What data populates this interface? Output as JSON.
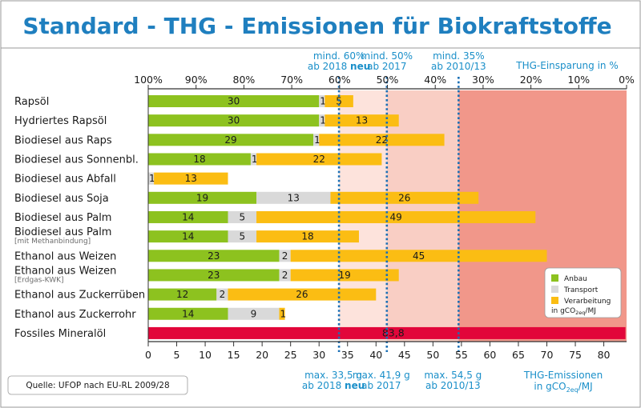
{
  "title": "Standard - THG - Emissionen für Biokraftstoffe",
  "source": "Quelle: UFOP nach EU-RL 2009/28",
  "colors": {
    "title": "#1f7fbf",
    "anbau": "#8dc21f",
    "transport": "#d9d9d9",
    "verarbeitung": "#fbbd13",
    "fossil": "#e2063a",
    "zone_light": "#fde3dc",
    "zone_mid": "#f9cec4",
    "zone_dark": "#f1978a",
    "threshold_line": "#1a6fb5",
    "frame": "#333333"
  },
  "header": {
    "thresholds": [
      {
        "line1": "mind. 60%",
        "line2_pre": "ab 2018 ",
        "line2_bold": "neu"
      },
      {
        "line1": "mind. 50%",
        "line2_pre": "ab 2017",
        "line2_bold": ""
      },
      {
        "line1": "mind. 35%",
        "line2_pre": "ab 2010/13",
        "line2_bold": ""
      }
    ],
    "savings_label": "THG-Einsparung in %",
    "savings_ticks": [
      "100%",
      "90%",
      "80%",
      "70%",
      "60%",
      "50%",
      "40%",
      "30%",
      "20%",
      "10%",
      "0%"
    ]
  },
  "footer": {
    "thresholds": [
      {
        "line1": "max. 33,5 g",
        "line2_pre": "ab 2018 ",
        "line2_bold": "neu"
      },
      {
        "line1": "max. 41,9 g",
        "line2_pre": "ab 2017",
        "line2_bold": ""
      },
      {
        "line1": "max. 54,5 g",
        "line2_pre": "ab 2010/13",
        "line2_bold": ""
      }
    ],
    "emissions_label_1": "THG-Emissionen",
    "emissions_label_2_pre": "in gCO",
    "emissions_label_2_sub": "2eq",
    "emissions_label_2_post": "/MJ"
  },
  "legend": {
    "items": [
      "Anbau",
      "Transport",
      "Verarbeitung"
    ],
    "unit_pre": "in gCO",
    "unit_sub": "2eq",
    "unit_post": "/MJ"
  },
  "chart_data": {
    "type": "bar",
    "orientation": "horizontal",
    "stacked": true,
    "title": "Standard - THG - Emissionen für Biokraftstoffe",
    "xlabel": "THG-Emissionen in gCO2eq/MJ",
    "xlim": [
      0,
      84
    ],
    "xticks": [
      0,
      5,
      10,
      15,
      20,
      25,
      30,
      35,
      40,
      45,
      50,
      55,
      60,
      65,
      70,
      75,
      80
    ],
    "thresholds": [
      33.5,
      41.9,
      54.5
    ],
    "fossil_reference": 83.8,
    "categories": [
      {
        "name": "Rapsöl",
        "note": ""
      },
      {
        "name": "Hydriertes Rapsöl",
        "note": ""
      },
      {
        "name": "Biodiesel aus Raps",
        "note": ""
      },
      {
        "name": "Biodiesel aus Sonnenbl.",
        "note": ""
      },
      {
        "name": "Biodiesel aus Abfall",
        "note": ""
      },
      {
        "name": "Biodiesel aus Soja",
        "note": ""
      },
      {
        "name": "Biodiesel aus Palm",
        "note": ""
      },
      {
        "name": "Biodiesel aus Palm",
        "note": "[mit Methanbindung]"
      },
      {
        "name": "Ethanol aus Weizen",
        "note": ""
      },
      {
        "name": "Ethanol aus Weizen",
        "note": "[Erdgas-KWK]"
      },
      {
        "name": "Ethanol aus Zuckerrüben",
        "note": ""
      },
      {
        "name": "Ethanol aus Zuckerrohr",
        "note": ""
      },
      {
        "name": "Fossiles Mineralöl",
        "note": ""
      }
    ],
    "series": [
      {
        "name": "Anbau",
        "values": [
          30,
          30,
          29,
          18,
          0,
          19,
          14,
          14,
          23,
          23,
          12,
          14,
          null
        ]
      },
      {
        "name": "Transport",
        "values": [
          1,
          1,
          1,
          1,
          1,
          13,
          5,
          5,
          2,
          2,
          2,
          9,
          null
        ]
      },
      {
        "name": "Verarbeitung",
        "values": [
          5,
          13,
          22,
          22,
          13,
          26,
          49,
          18,
          45,
          19,
          26,
          1,
          null
        ]
      },
      {
        "name": "Fossiles Mineralöl",
        "values": [
          null,
          null,
          null,
          null,
          null,
          null,
          null,
          null,
          null,
          null,
          null,
          null,
          83.8
        ]
      }
    ],
    "fossil_label": "83,8"
  }
}
